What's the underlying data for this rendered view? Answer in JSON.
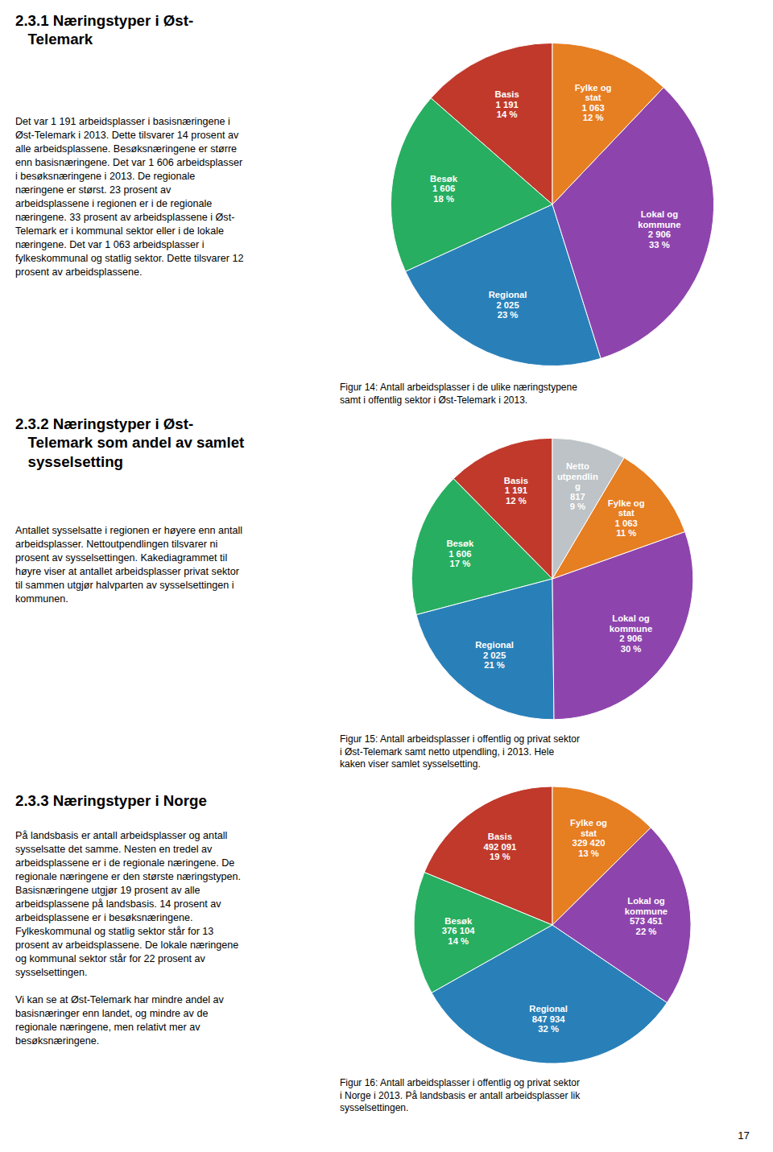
{
  "chart_data": [
    {
      "type": "pie",
      "title": "2.3.1 Næringstyper i Øst-\n   Telemark",
      "subtitle": "Figur 14: Antall arbeidsplasser i de ulike næringstypene\nsamt i offentlig sektor i Øst-Telemark i 2013.",
      "annotations": [
        "Det var 1 191 arbeidsplasser i basisnæringene i\nØst-Telemark i 2013. Dette tilsvarer 14 prosent av\nalle arbeidsplassene. Besøksnæringene er større\nenn basisnæringene. Det var 1 606 arbeidsplasser\ni besøksnæringene i 2013. De regionale\nnæringene er størst. 23 prosent av\narbeidsplassene i regionen er i de regionale\nnæringene. 33 prosent av arbeidsplassene i Øst-\nTelemark er i kommunal sektor eller i de lokale\nnæringene. Det var 1 063 arbeidsplasser i\nfylkeskommunal og statlig sektor. Dette tilsvarer 12\nprosent av arbeidsplassene."
      ],
      "values": [
        1191,
        1606,
        2025,
        2906,
        1063
      ],
      "value_labels": [
        "Basis\n1 191\n14 %",
        "Besøk\n1 606\n18 %",
        "Regional\n2 025\n23 %",
        "Lokal og\nkommune\n2 906\n33 %",
        "Fylke og\nstat\n1 063\n12 %"
      ],
      "colors": [
        "#c0392b",
        "#27ae60",
        "#2980b9",
        "#8e44ad",
        "#e67e22"
      ],
      "data_labels": true
    },
    {
      "type": "pie",
      "title": "2.3.2 Næringstyper i Øst-\n   Telemark som andel av samlet\n   sysselsetting",
      "subtitle": "Figur 15: Antall arbeidsplasser i offentlig og privat sektor\ni Øst-Telemark samt netto utpendling, i 2013. Hele\nkaken viser samlet sysselsetting.",
      "annotations": [
        "Antallet sysselsatte i regionen er høyere enn antall\narbeidsplasser. Nettoutpendlingen tilsvarer ni\nprosent av sysselsettingen. Kakediagrammet til\nhøyre viser at antallet arbeidsplasser privat sektor\ntil sammen utgjør halvparten av sysselsettingen i\nkommunen."
      ],
      "values": [
        1191,
        1606,
        2025,
        2906,
        1063,
        817
      ],
      "value_labels": [
        "Basis\n1 191\n12 %",
        "Besøk\n1 606\n17 %",
        "Regional\n2 025\n21 %",
        "Lokal og\nkommune\n2 906\n30 %",
        "Fylke og\nstat\n1 063\n11 %",
        "Netto\nutpendlin\ng\n817\n9 %"
      ],
      "colors": [
        "#c0392b",
        "#27ae60",
        "#2980b9",
        "#8e44ad",
        "#e67e22",
        "#bdc3c7"
      ],
      "data_labels": true
    },
    {
      "type": "pie",
      "title": "2.3.3 Næringstyper i Norge",
      "subtitle": "Figur 16: Antall arbeidsplasser i offentlig og privat sektor\ni Norge i 2013. På landsbasis er antall arbeidsplasser lik\nsysselsettingen.",
      "annotations": [
        "På landsbasis er antall arbeidsplasser og antall\nsysselsatte det samme. Nesten en tredel av\narbeidsplassene er i de regionale næringene. De\nregionale næringene er den største næringstypen.\nBasisnæringene utgjør 19 prosent av alle\narbeidsplassene på landsbasis. 14 prosent av\narbeidsplassene er i besøksnæringene.\nFylkeskommunal og statlig sektor står for 13\nprosent av arbeidsplassene. De lokale næringene\nog kommunal sektor står for 22 prosent av\nsysselsettingen.\n\nVi kan se at Øst-Telemark har mindre andel av\nbasisnæringer enn landet, og mindre av de\nregionale næringene, men relativt mer av\nbesøksnæringene.",
        "17"
      ],
      "values": [
        492091,
        376104,
        847934,
        573451,
        329420
      ],
      "value_labels": [
        "Basis\n492 091\n19 %",
        "Besøk\n376 104\n14 %",
        "Regional\n847 934\n32 %",
        "Lokal og\nkommune\n573 451\n22 %",
        "Fylke og\nstat\n329 420\n13 %"
      ],
      "colors": [
        "#c0392b",
        "#27ae60",
        "#2980b9",
        "#8e44ad",
        "#e67e22"
      ],
      "data_labels": true
    }
  ]
}
